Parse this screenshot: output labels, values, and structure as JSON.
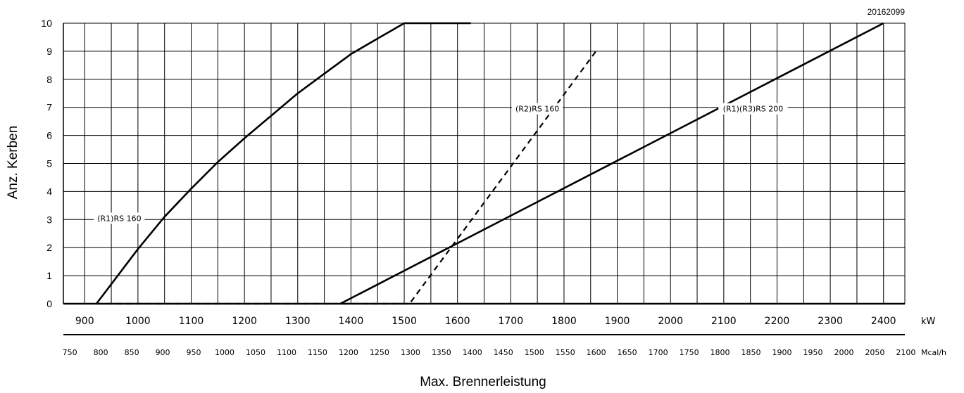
{
  "chart_data": {
    "type": "line",
    "code": "20162099",
    "ylabel": "Anz. Kerben",
    "xlabel": "Max. Brennerleistung",
    "x_unit": "kW",
    "x2_unit": "Mcal/h",
    "xlim": [
      860,
      2440
    ],
    "ylim": [
      0,
      10
    ],
    "grid": true,
    "y_ticks": [
      0,
      1,
      2,
      3,
      4,
      5,
      6,
      7,
      8,
      9,
      10
    ],
    "x_ticks": [
      900,
      1000,
      1100,
      1200,
      1300,
      1400,
      1500,
      1600,
      1700,
      1800,
      1900,
      2000,
      2100,
      2200,
      2300,
      2400
    ],
    "x2_ticks": [
      750,
      800,
      850,
      900,
      950,
      1000,
      1050,
      1100,
      1150,
      1200,
      1250,
      1300,
      1350,
      1400,
      1450,
      1500,
      1550,
      1600,
      1650,
      1700,
      1750,
      1800,
      1850,
      1900,
      1950,
      2000,
      2050,
      2100
    ],
    "series": [
      {
        "name": "(R1)RS 160",
        "style": "solid",
        "x": [
          922,
          950,
          1000,
          1050,
          1100,
          1150,
          1200,
          1250,
          1300,
          1350,
          1400,
          1450,
          1500,
          1550,
          1600,
          1625
        ],
        "y": [
          0,
          0.7,
          1.95,
          3.1,
          4.1,
          5.05,
          5.9,
          6.7,
          7.5,
          8.2,
          8.9,
          9.45,
          10,
          10,
          10,
          10
        ]
      },
      {
        "name": "(R1)(R3)RS 200",
        "style": "solid",
        "x": [
          1380,
          2400
        ],
        "y": [
          0,
          10
        ]
      },
      {
        "name": "(R2)RS 160",
        "style": "dashed",
        "x": [
          922,
          1510,
          1860
        ],
        "y": [
          0,
          0,
          9
        ]
      }
    ],
    "annotations": [
      {
        "text": "(R1)RS 160",
        "x": 965,
        "y": 3.05
      },
      {
        "text": "(R2)RS 160",
        "x": 1750,
        "y": 6.95
      },
      {
        "text": "(R1)(R3)RS 200",
        "x": 2155,
        "y": 6.95
      }
    ],
    "colors": {
      "line": "#000000",
      "grid": "#000000",
      "background": "#ffffff"
    }
  }
}
